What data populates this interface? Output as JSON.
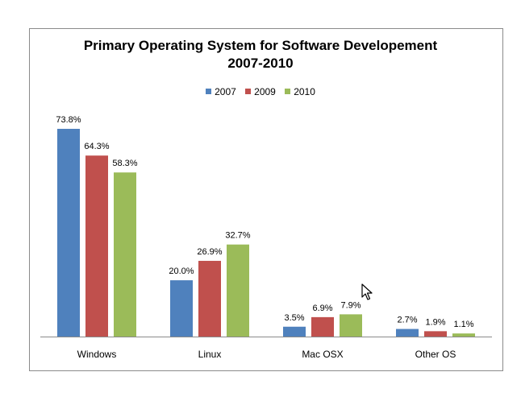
{
  "chart_data": {
    "type": "bar",
    "title_line1": "Primary Operating System for Software Developement",
    "title_line2": "2007-2010",
    "categories": [
      "Windows",
      "Linux",
      "Mac OSX",
      "Other OS"
    ],
    "series": [
      {
        "name": "2007",
        "color": "#4f81bd",
        "values": [
          73.8,
          20.0,
          3.5,
          2.7
        ],
        "labels": [
          "73.8%",
          "20.0%",
          "3.5%",
          "2.7%"
        ]
      },
      {
        "name": "2009",
        "color": "#c0504d",
        "values": [
          64.3,
          26.9,
          6.9,
          1.9
        ],
        "labels": [
          "64.3%",
          "26.9%",
          "6.9%",
          "1.9%"
        ]
      },
      {
        "name": "2010",
        "color": "#9bbb59",
        "values": [
          58.3,
          32.7,
          7.9,
          1.1
        ],
        "labels": [
          "58.3%",
          "32.7%",
          "7.9%",
          "1.1%"
        ]
      }
    ],
    "ylim": [
      0,
      75
    ],
    "legend_position": "top",
    "grid": false
  }
}
